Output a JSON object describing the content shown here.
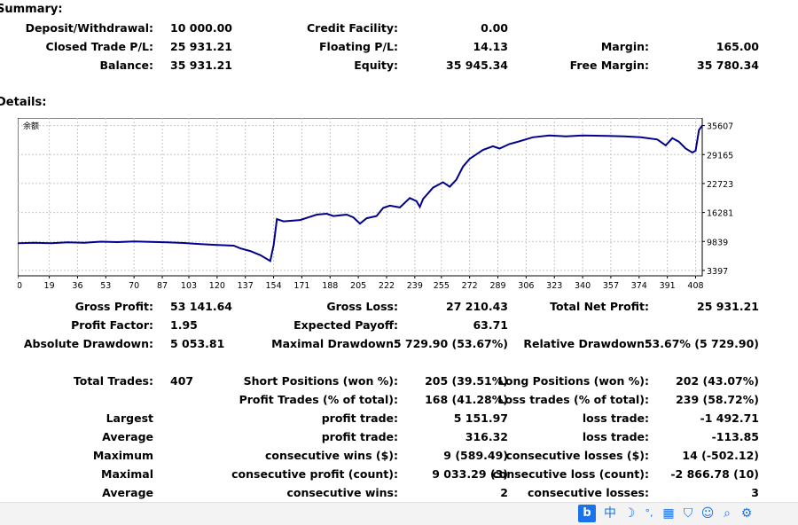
{
  "summary": {
    "title": "Summary:",
    "rows": [
      [
        "Deposit/Withdrawal:",
        "10 000.00",
        "Credit Facility:",
        "0.00",
        "",
        ""
      ],
      [
        "Closed Trade P/L:",
        "25 931.21",
        "Floating P/L:",
        "14.13",
        "Margin:",
        "165.00"
      ],
      [
        "Balance:",
        "35 931.21",
        "Equity:",
        "35 945.34",
        "Free Margin:",
        "35 780.34"
      ]
    ]
  },
  "details": {
    "title": "Details:",
    "chart_label": "余额"
  },
  "chart_data": {
    "type": "line",
    "title": "",
    "series_label": "余额",
    "x_ticks": [
      0,
      19,
      36,
      53,
      70,
      87,
      103,
      120,
      137,
      154,
      171,
      188,
      205,
      222,
      239,
      255,
      272,
      289,
      306,
      323,
      340,
      357,
      374,
      391,
      408
    ],
    "y_ticks": [
      3397,
      9839,
      16281,
      22723,
      29165,
      35607
    ],
    "xlim": [
      0,
      412
    ],
    "ylim": [
      2200,
      37300
    ],
    "grid": true,
    "points": [
      [
        0,
        9450
      ],
      [
        10,
        9550
      ],
      [
        20,
        9450
      ],
      [
        30,
        9650
      ],
      [
        40,
        9550
      ],
      [
        50,
        9800
      ],
      [
        60,
        9700
      ],
      [
        70,
        9850
      ],
      [
        80,
        9750
      ],
      [
        90,
        9650
      ],
      [
        100,
        9500
      ],
      [
        110,
        9250
      ],
      [
        120,
        9050
      ],
      [
        130,
        8900
      ],
      [
        134,
        8300
      ],
      [
        140,
        7700
      ],
      [
        146,
        6800
      ],
      [
        152,
        5500
      ],
      [
        154,
        9000
      ],
      [
        156,
        14800
      ],
      [
        160,
        14300
      ],
      [
        170,
        14600
      ],
      [
        175,
        15200
      ],
      [
        180,
        15800
      ],
      [
        186,
        16000
      ],
      [
        190,
        15500
      ],
      [
        198,
        15800
      ],
      [
        202,
        15200
      ],
      [
        206,
        13800
      ],
      [
        210,
        15000
      ],
      [
        216,
        15500
      ],
      [
        220,
        17300
      ],
      [
        224,
        17800
      ],
      [
        230,
        17400
      ],
      [
        236,
        19500
      ],
      [
        240,
        18800
      ],
      [
        242,
        17500
      ],
      [
        244,
        19300
      ],
      [
        250,
        21800
      ],
      [
        256,
        23000
      ],
      [
        260,
        22000
      ],
      [
        264,
        23600
      ],
      [
        268,
        26500
      ],
      [
        272,
        28200
      ],
      [
        276,
        29200
      ],
      [
        280,
        30200
      ],
      [
        286,
        31000
      ],
      [
        290,
        30500
      ],
      [
        296,
        31500
      ],
      [
        300,
        31900
      ],
      [
        310,
        33000
      ],
      [
        320,
        33400
      ],
      [
        330,
        33200
      ],
      [
        340,
        33400
      ],
      [
        355,
        33300
      ],
      [
        365,
        33200
      ],
      [
        375,
        33000
      ],
      [
        385,
        32500
      ],
      [
        390,
        31200
      ],
      [
        394,
        32800
      ],
      [
        398,
        32000
      ],
      [
        402,
        30500
      ],
      [
        406,
        29600
      ],
      [
        408,
        30000
      ],
      [
        410,
        34600
      ],
      [
        412,
        35607
      ]
    ]
  },
  "stats": {
    "block1": [
      [
        "Gross Profit:",
        "53 141.64",
        "Gross Loss:",
        "27 210.43",
        "Total Net Profit:",
        "25 931.21"
      ],
      [
        "Profit Factor:",
        "1.95",
        "Expected Payoff:",
        "63.71",
        "",
        ""
      ],
      [
        "Absolute Drawdown:",
        "5 053.81",
        "Maximal Drawdown:",
        "5 729.90 (53.67%)",
        "Relative Drawdown:",
        "53.67% (5 729.90)"
      ]
    ],
    "block2": [
      [
        "Total Trades:",
        "407",
        "Short Positions (won %):",
        "205 (39.51%)",
        "Long Positions (won %):",
        "202 (43.07%)"
      ],
      [
        "",
        "",
        "Profit Trades (% of total):",
        "168 (41.28%)",
        "Loss trades (% of total):",
        "239 (58.72%)"
      ],
      [
        "Largest",
        "",
        "profit trade:",
        "5 151.97",
        "loss trade:",
        "-1 492.71"
      ],
      [
        "Average",
        "",
        "profit trade:",
        "316.32",
        "loss trade:",
        "-113.85"
      ],
      [
        "Maximum",
        "",
        "consecutive wins ($):",
        "9 (589.49)",
        "consecutive losses ($):",
        "14 (-502.12)"
      ],
      [
        "Maximal",
        "",
        "consecutive profit (count):",
        "9 033.29 (3)",
        "consecutive loss (count):",
        "-2 866.78 (10)"
      ],
      [
        "Average",
        "",
        "consecutive wins:",
        "2",
        "consecutive losses:",
        "3"
      ]
    ]
  },
  "taskbar": {
    "icons": [
      "bing-icon",
      "chinese-input-icon",
      "moon-icon",
      "punctuation-icon",
      "keyboard-icon",
      "shirt-icon",
      "user-icon",
      "search-icon",
      "settings-icon"
    ],
    "ime_char": "中",
    "punct": "°,"
  }
}
